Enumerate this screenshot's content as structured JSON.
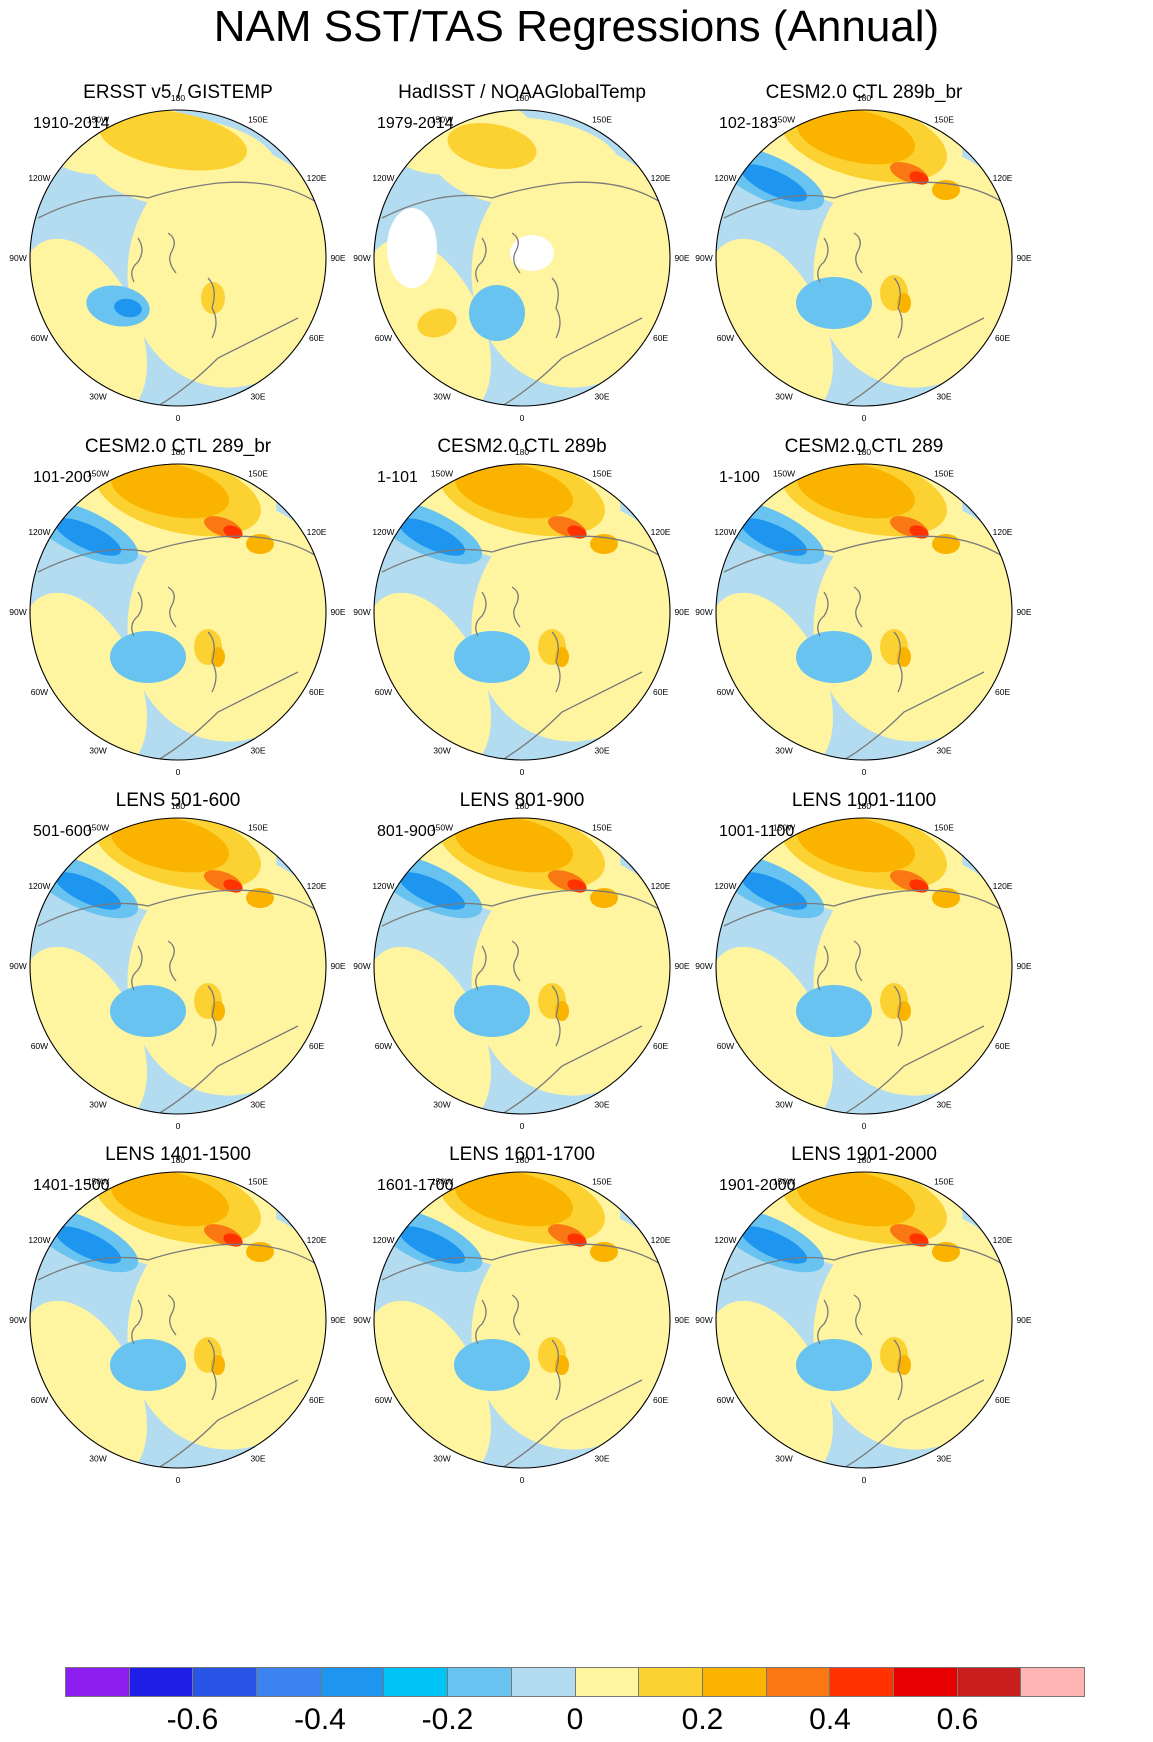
{
  "title": "NAM SST/TAS Regressions (Annual)",
  "panels": [
    {
      "title": "ERSST v5 / GISTEMP",
      "period": "1910-2014",
      "style": "obs"
    },
    {
      "title": "HadISST / NOAAGlobalTemp",
      "period": "1979-2014",
      "style": "obs2"
    },
    {
      "title": "CESM2.0 CTL 289b_br",
      "period": "102-183",
      "style": "model"
    },
    {
      "title": "CESM2.0 CTL 289_br",
      "period": "101-200",
      "style": "model"
    },
    {
      "title": "CESM2.0 CTL 289b",
      "period": "1-101",
      "style": "model"
    },
    {
      "title": "CESM2.0 CTL 289",
      "period": "1-100",
      "style": "model"
    },
    {
      "title": "LENS 501-600",
      "period": "501-600",
      "style": "model"
    },
    {
      "title": "LENS 801-900",
      "period": "801-900",
      "style": "model"
    },
    {
      "title": "LENS 1001-1100",
      "period": "1001-1100",
      "style": "model"
    },
    {
      "title": "LENS 1401-1500",
      "period": "1401-1500",
      "style": "model"
    },
    {
      "title": "LENS 1601-1700",
      "period": "1601-1700",
      "style": "model"
    },
    {
      "title": "LENS 1901-2000",
      "period": "1901-2000",
      "style": "model"
    }
  ],
  "longitude_labels": [
    "180",
    "150E",
    "120E",
    "90E",
    "60E",
    "30E",
    "0",
    "30W",
    "60W",
    "90W",
    "120W",
    "150W"
  ],
  "colorbar": {
    "colors": [
      "#8c1ef0",
      "#1e1ee6",
      "#2855e6",
      "#3c82f0",
      "#1e96f0",
      "#00c3f5",
      "#69c3f0",
      "#b4dcf0",
      "#fff5a0",
      "#fcd232",
      "#fab400",
      "#fa7814",
      "#ff3200",
      "#e60000",
      "#c81e1e",
      "#ffb4b4"
    ],
    "labels": [
      "-0.6",
      "-0.4",
      "-0.2",
      "0",
      "0.2",
      "0.4",
      "0.6"
    ]
  }
}
